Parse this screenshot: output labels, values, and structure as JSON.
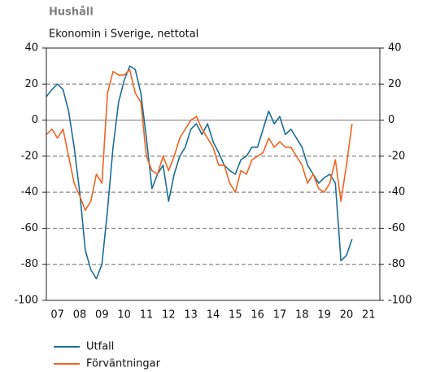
{
  "chart_data": {
    "type": "line",
    "title": "Hushåll",
    "subtitle": "Ekonomin i Sverige, nettotal",
    "x": [
      2007.0,
      2007.25,
      2007.5,
      2007.75,
      2008.0,
      2008.25,
      2008.5,
      2008.75,
      2009.0,
      2009.25,
      2009.5,
      2009.75,
      2010.0,
      2010.25,
      2010.5,
      2010.75,
      2011.0,
      2011.25,
      2011.5,
      2011.75,
      2012.0,
      2012.25,
      2012.5,
      2012.75,
      2013.0,
      2013.25,
      2013.5,
      2013.75,
      2014.0,
      2014.25,
      2014.5,
      2014.75,
      2015.0,
      2015.25,
      2015.5,
      2015.75,
      2016.0,
      2016.25,
      2016.5,
      2016.75,
      2017.0,
      2017.25,
      2017.5,
      2017.75,
      2018.0,
      2018.25,
      2018.5,
      2018.75,
      2019.0,
      2019.25,
      2019.5,
      2019.75,
      2020.0,
      2020.25,
      2020.5,
      2020.75
    ],
    "series": [
      {
        "name": "Utfall",
        "color": "#1a6e96",
        "values": [
          13,
          17,
          20,
          17,
          5,
          -15,
          -40,
          -72,
          -83,
          -88,
          -80,
          -50,
          -15,
          10,
          22,
          30,
          28,
          15,
          -10,
          -38,
          -30,
          -25,
          -45,
          -30,
          -20,
          -15,
          -5,
          -2,
          -8,
          -2,
          -12,
          -18,
          -25,
          -28,
          -30,
          -22,
          -20,
          -15,
          -15,
          -5,
          5,
          -2,
          2,
          -8,
          -5,
          -10,
          -15,
          -25,
          -30,
          -35,
          -32,
          -30,
          -35,
          -78,
          -75,
          -66
        ]
      },
      {
        "name": "Förväntningar",
        "color": "#f26322",
        "values": [
          -8,
          -5,
          -10,
          -5,
          -20,
          -35,
          -42,
          -50,
          -45,
          -30,
          -35,
          15,
          27,
          25,
          25,
          28,
          15,
          10,
          -20,
          -28,
          -30,
          -20,
          -28,
          -20,
          -10,
          -5,
          0,
          2,
          -5,
          -10,
          -15,
          -25,
          -25,
          -35,
          -40,
          -28,
          -30,
          -22,
          -20,
          -18,
          -10,
          -15,
          -12,
          -15,
          -15,
          -20,
          -25,
          -35,
          -30,
          -38,
          -40,
          -35,
          -22,
          -45,
          -25,
          -2
        ]
      }
    ],
    "xlim": [
      2007,
      2022
    ],
    "xticks": [
      {
        "value": 2007.5,
        "label": "07"
      },
      {
        "value": 2008.5,
        "label": "08"
      },
      {
        "value": 2009.5,
        "label": "09"
      },
      {
        "value": 2010.5,
        "label": "10"
      },
      {
        "value": 2011.5,
        "label": "11"
      },
      {
        "value": 2012.5,
        "label": "12"
      },
      {
        "value": 2013.5,
        "label": "13"
      },
      {
        "value": 2014.5,
        "label": "14"
      },
      {
        "value": 2015.5,
        "label": "15"
      },
      {
        "value": 2016.5,
        "label": "16"
      },
      {
        "value": 2017.5,
        "label": "17"
      },
      {
        "value": 2018.5,
        "label": "18"
      },
      {
        "value": 2019.5,
        "label": "19"
      },
      {
        "value": 2020.5,
        "label": "20"
      },
      {
        "value": 2021.5,
        "label": "21"
      }
    ],
    "ylim": [
      -100,
      40
    ],
    "yticks": [
      40,
      20,
      0,
      -20,
      -40,
      -60,
      -80,
      -100
    ],
    "y2lim": [
      -100,
      40
    ],
    "y2ticks": [
      40,
      20,
      0,
      -20,
      -40,
      -60,
      -80,
      -100
    ],
    "grid": true
  }
}
